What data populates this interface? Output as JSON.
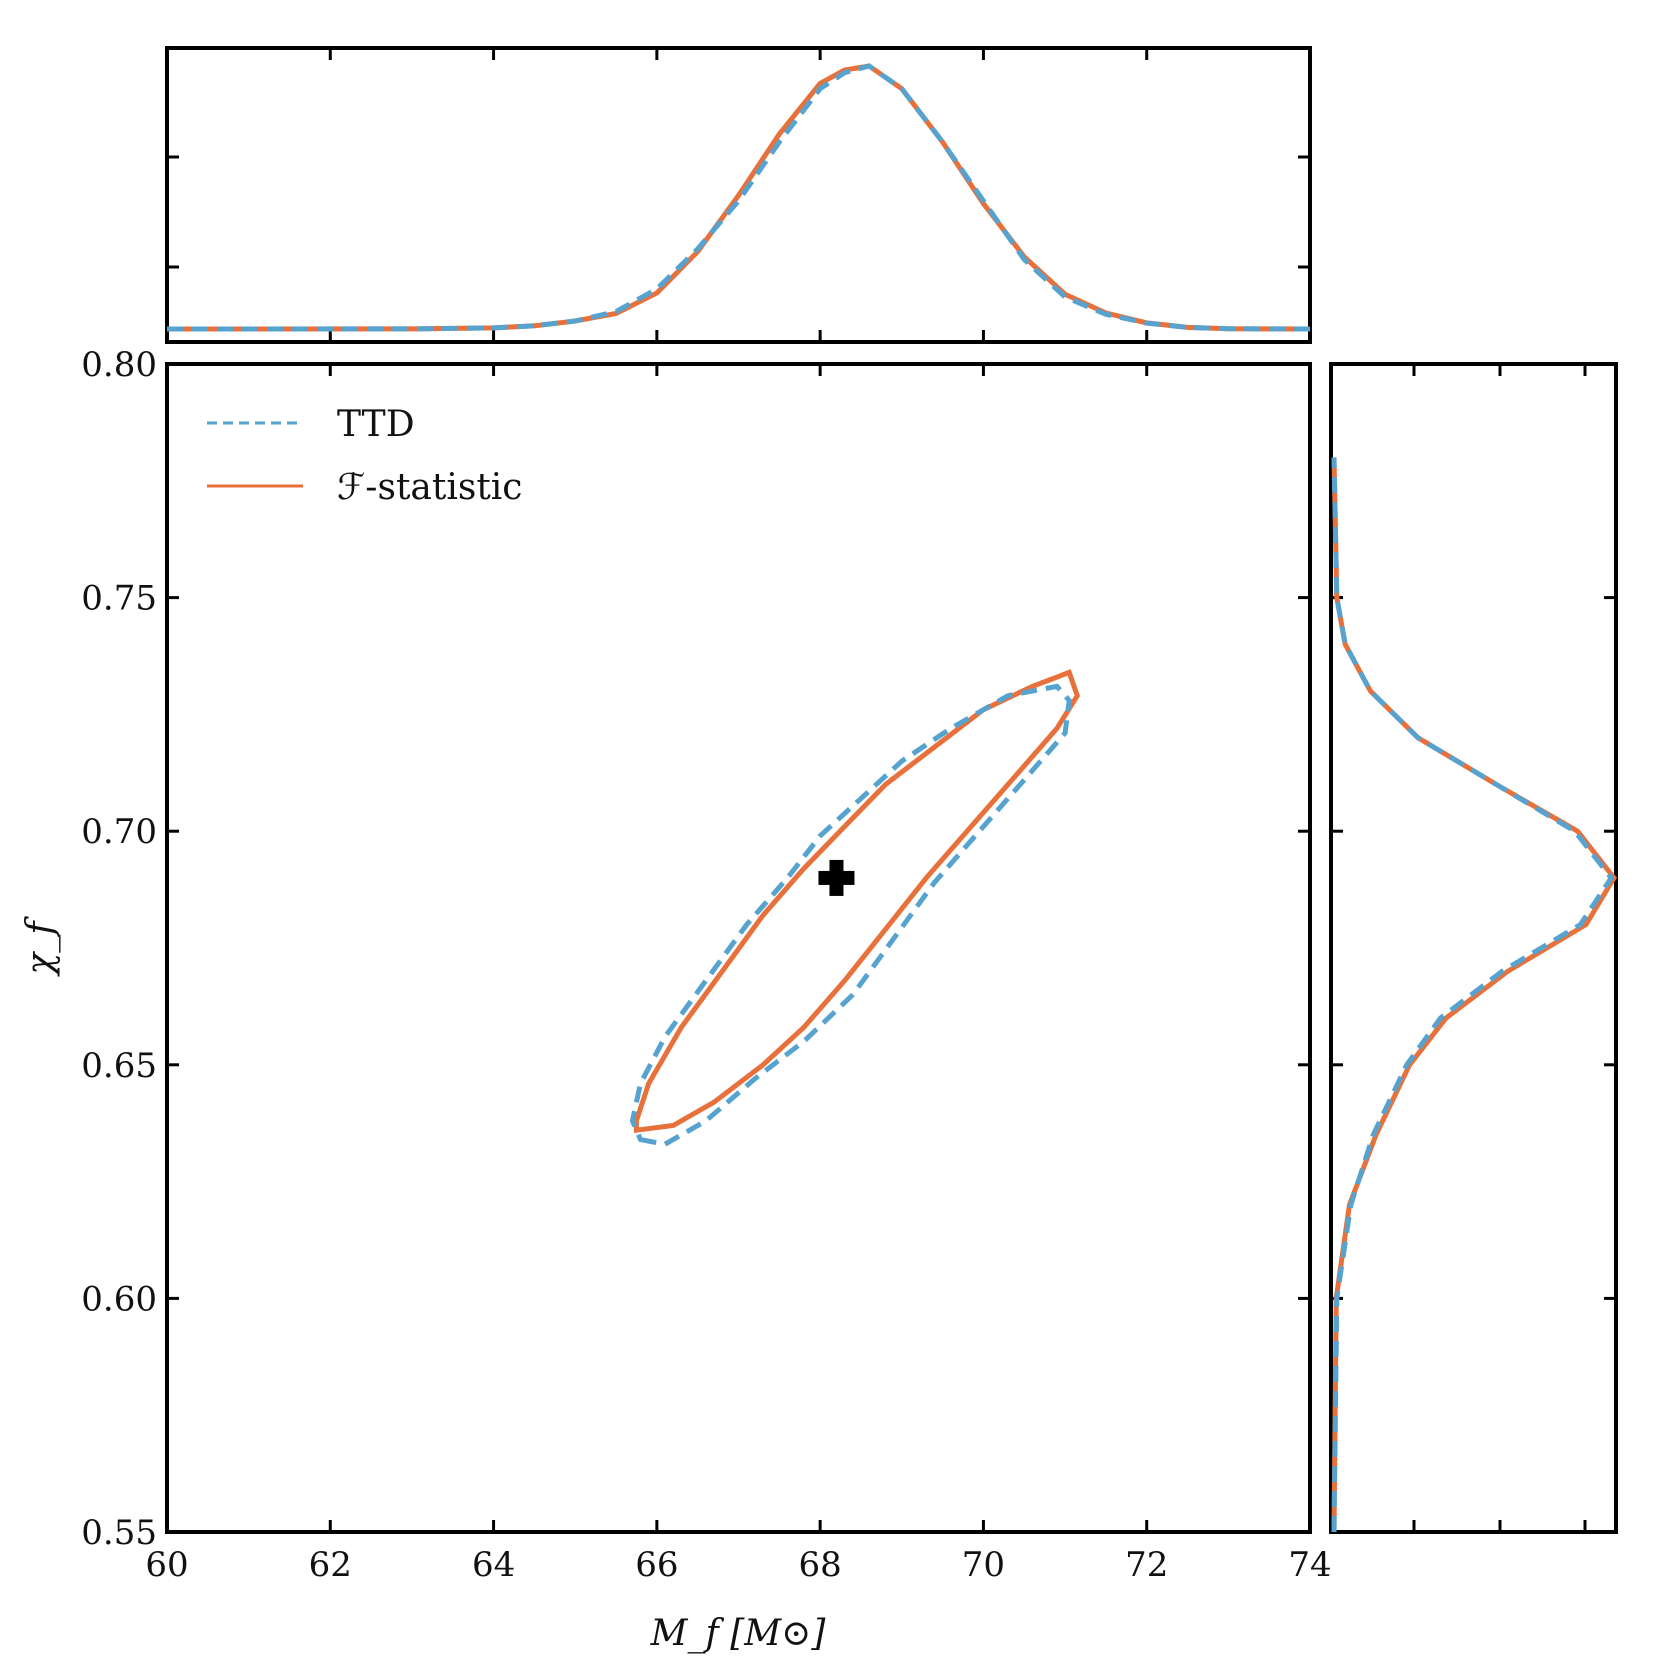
{
  "chart_data": {
    "type": "contour",
    "xlabel": "M_f [M⊙]",
    "ylabel": "χ_f",
    "xlim": [
      60,
      74
    ],
    "ylim": [
      0.55,
      0.8
    ],
    "x_ticks": [
      "60",
      "62",
      "64",
      "66",
      "68",
      "70",
      "72",
      "74"
    ],
    "y_ticks": [
      "0.55",
      "0.60",
      "0.65",
      "0.70",
      "0.75",
      "0.80"
    ],
    "colors": {
      "ttd": "#56a3d0",
      "fstat": "#e8703a",
      "marker": "#000000"
    },
    "legend": {
      "placement": "upper-left",
      "entries": [
        {
          "label": "TTD",
          "style": "dashed",
          "color": "#56a3d0"
        },
        {
          "label": "ℱ-statistic",
          "style": "solid",
          "color": "#e8703a"
        }
      ]
    },
    "marker": {
      "x": 68.2,
      "y": 0.69,
      "shape": "plus"
    },
    "series": [
      {
        "name": "TTD",
        "style": "dashed",
        "contour": [
          [
            65.8,
            0.634
          ],
          [
            66.1,
            0.633
          ],
          [
            66.6,
            0.638
          ],
          [
            67.2,
            0.647
          ],
          [
            67.8,
            0.655
          ],
          [
            68.4,
            0.665
          ],
          [
            68.9,
            0.677
          ],
          [
            69.4,
            0.689
          ],
          [
            69.8,
            0.697
          ],
          [
            70.2,
            0.705
          ],
          [
            70.6,
            0.713
          ],
          [
            71.0,
            0.721
          ],
          [
            71.05,
            0.728
          ],
          [
            70.9,
            0.731
          ],
          [
            70.3,
            0.729
          ],
          [
            69.6,
            0.722
          ],
          [
            69.0,
            0.715
          ],
          [
            68.5,
            0.707
          ],
          [
            68.0,
            0.699
          ],
          [
            67.6,
            0.69
          ],
          [
            67.1,
            0.68
          ],
          [
            66.6,
            0.668
          ],
          [
            66.1,
            0.656
          ],
          [
            65.8,
            0.646
          ],
          [
            65.7,
            0.638
          ]
        ],
        "marginal_x": [
          [
            60,
            0.0
          ],
          [
            63,
            0.0005
          ],
          [
            64,
            0.004
          ],
          [
            64.5,
            0.012
          ],
          [
            65,
            0.03
          ],
          [
            65.5,
            0.065
          ],
          [
            66,
            0.15
          ],
          [
            66.5,
            0.3
          ],
          [
            67,
            0.48
          ],
          [
            67.5,
            0.7
          ],
          [
            68,
            0.9
          ],
          [
            68.3,
            0.96
          ],
          [
            68.6,
            0.985
          ],
          [
            69,
            0.9
          ],
          [
            69.5,
            0.7
          ],
          [
            70,
            0.48
          ],
          [
            70.5,
            0.26
          ],
          [
            71,
            0.12
          ],
          [
            71.5,
            0.055
          ],
          [
            72,
            0.022
          ],
          [
            72.5,
            0.006
          ],
          [
            73,
            0.001
          ],
          [
            74,
            0.0
          ]
        ],
        "marginal_y": [
          [
            0.55,
            0.0
          ],
          [
            0.6,
            0.01
          ],
          [
            0.62,
            0.06
          ],
          [
            0.635,
            0.14
          ],
          [
            0.65,
            0.26
          ],
          [
            0.66,
            0.38
          ],
          [
            0.67,
            0.6
          ],
          [
            0.68,
            0.88
          ],
          [
            0.69,
            0.99
          ],
          [
            0.7,
            0.86
          ],
          [
            0.71,
            0.58
          ],
          [
            0.72,
            0.3
          ],
          [
            0.73,
            0.13
          ],
          [
            0.74,
            0.04
          ],
          [
            0.75,
            0.01
          ],
          [
            0.78,
            0.0
          ]
        ]
      },
      {
        "name": "ℱ-statistic",
        "style": "solid",
        "contour": [
          [
            65.75,
            0.636
          ],
          [
            66.2,
            0.637
          ],
          [
            66.7,
            0.642
          ],
          [
            67.3,
            0.65
          ],
          [
            67.8,
            0.658
          ],
          [
            68.3,
            0.668
          ],
          [
            68.8,
            0.679
          ],
          [
            69.3,
            0.69
          ],
          [
            69.7,
            0.698
          ],
          [
            70.1,
            0.706
          ],
          [
            70.5,
            0.714
          ],
          [
            70.9,
            0.722
          ],
          [
            71.15,
            0.729
          ],
          [
            71.05,
            0.734
          ],
          [
            70.6,
            0.731
          ],
          [
            70.0,
            0.726
          ],
          [
            69.4,
            0.718
          ],
          [
            68.8,
            0.71
          ],
          [
            68.3,
            0.701
          ],
          [
            67.8,
            0.692
          ],
          [
            67.3,
            0.682
          ],
          [
            66.8,
            0.67
          ],
          [
            66.3,
            0.658
          ],
          [
            65.9,
            0.646
          ],
          [
            65.75,
            0.638
          ]
        ],
        "marginal_x": [
          [
            60,
            0.0
          ],
          [
            63,
            0.0005
          ],
          [
            64,
            0.004
          ],
          [
            64.5,
            0.012
          ],
          [
            65,
            0.03
          ],
          [
            65.5,
            0.058
          ],
          [
            66,
            0.135
          ],
          [
            66.5,
            0.29
          ],
          [
            67,
            0.5
          ],
          [
            67.5,
            0.73
          ],
          [
            68,
            0.92
          ],
          [
            68.3,
            0.97
          ],
          [
            68.6,
            0.985
          ],
          [
            69,
            0.9
          ],
          [
            69.5,
            0.7
          ],
          [
            70,
            0.47
          ],
          [
            70.5,
            0.27
          ],
          [
            71,
            0.13
          ],
          [
            71.5,
            0.06
          ],
          [
            72,
            0.023
          ],
          [
            72.5,
            0.006
          ],
          [
            73,
            0.001
          ],
          [
            74,
            0.0
          ]
        ],
        "marginal_y": [
          [
            0.55,
            0.0
          ],
          [
            0.6,
            0.008
          ],
          [
            0.62,
            0.055
          ],
          [
            0.635,
            0.15
          ],
          [
            0.65,
            0.27
          ],
          [
            0.66,
            0.4
          ],
          [
            0.67,
            0.62
          ],
          [
            0.68,
            0.9
          ],
          [
            0.69,
            1.0
          ],
          [
            0.7,
            0.87
          ],
          [
            0.71,
            0.58
          ],
          [
            0.72,
            0.3
          ],
          [
            0.73,
            0.13
          ],
          [
            0.74,
            0.04
          ],
          [
            0.75,
            0.01
          ],
          [
            0.78,
            0.0
          ]
        ]
      }
    ]
  }
}
